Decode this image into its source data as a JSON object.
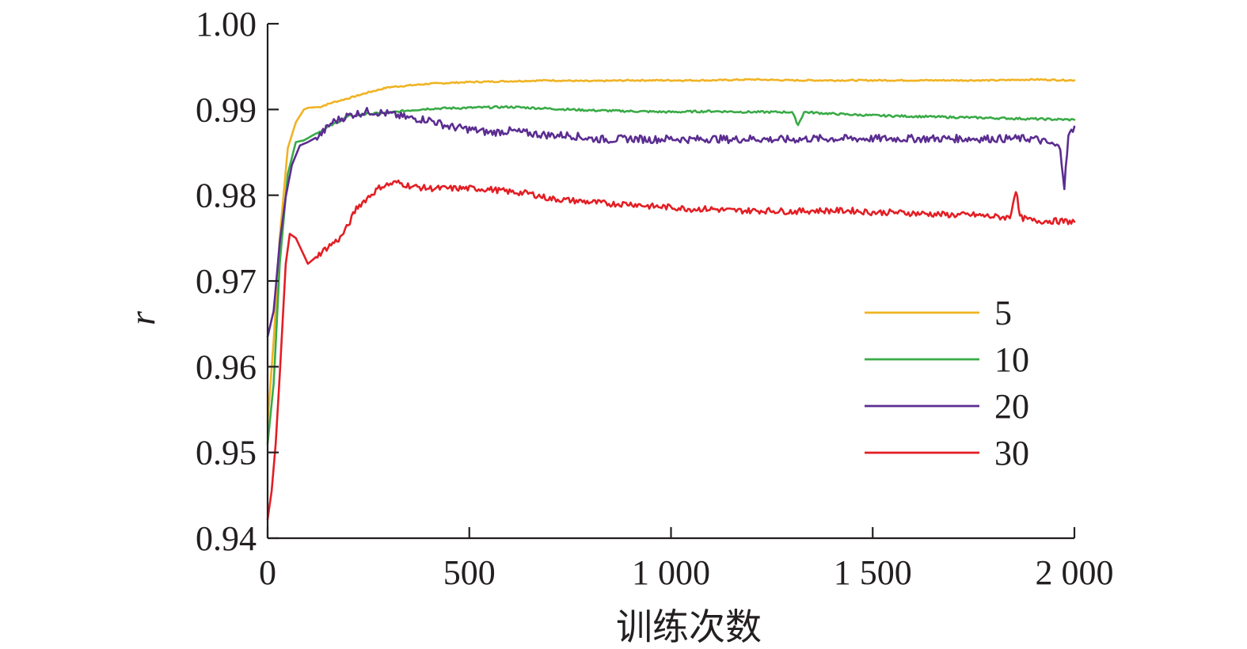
{
  "chart_data": {
    "type": "line",
    "xlabel": "训练次数",
    "ylabel": "r",
    "xlim": [
      0,
      2000
    ],
    "ylim": [
      0.94,
      1.0
    ],
    "x_ticks": [
      0,
      500,
      1000,
      1500,
      2000
    ],
    "x_tick_labels": [
      "0",
      "500",
      "1 000",
      "1 500",
      "2 000"
    ],
    "y_ticks": [
      0.94,
      0.95,
      0.96,
      0.97,
      0.98,
      0.99,
      1.0
    ],
    "y_tick_labels": [
      "0.94",
      "0.95",
      "0.96",
      "0.97",
      "0.98",
      "0.99",
      "1.00"
    ],
    "legend_position": "right-middle",
    "grid": false,
    "series": [
      {
        "name": "5",
        "color": "#f0b323",
        "points": [
          [
            0,
            0.9535
          ],
          [
            15,
            0.963
          ],
          [
            30,
            0.975
          ],
          [
            50,
            0.9855
          ],
          [
            70,
            0.9885
          ],
          [
            90,
            0.99
          ],
          [
            100,
            0.9902
          ],
          [
            130,
            0.9903
          ],
          [
            160,
            0.9908
          ],
          [
            200,
            0.9913
          ],
          [
            250,
            0.992
          ],
          [
            300,
            0.9926
          ],
          [
            350,
            0.9928
          ],
          [
            400,
            0.993
          ],
          [
            500,
            0.9932
          ],
          [
            600,
            0.9933
          ],
          [
            700,
            0.9934
          ],
          [
            800,
            0.9933
          ],
          [
            900,
            0.9934
          ],
          [
            1000,
            0.9934
          ],
          [
            1100,
            0.9934
          ],
          [
            1200,
            0.9935
          ],
          [
            1300,
            0.9934
          ],
          [
            1400,
            0.9934
          ],
          [
            1500,
            0.9934
          ],
          [
            1600,
            0.9934
          ],
          [
            1700,
            0.9934
          ],
          [
            1800,
            0.9934
          ],
          [
            1900,
            0.9935
          ],
          [
            2000,
            0.9934
          ]
        ]
      },
      {
        "name": "10",
        "color": "#3aaa47",
        "points": [
          [
            0,
            0.951
          ],
          [
            15,
            0.958
          ],
          [
            30,
            0.972
          ],
          [
            50,
            0.9825
          ],
          [
            70,
            0.9862
          ],
          [
            90,
            0.9864
          ],
          [
            120,
            0.9872
          ],
          [
            160,
            0.9882
          ],
          [
            200,
            0.9892
          ],
          [
            250,
            0.9895
          ],
          [
            300,
            0.9896
          ],
          [
            350,
            0.9899
          ],
          [
            400,
            0.9901
          ],
          [
            500,
            0.9902
          ],
          [
            600,
            0.9903
          ],
          [
            700,
            0.9901
          ],
          [
            800,
            0.9899
          ],
          [
            900,
            0.9898
          ],
          [
            1000,
            0.9897
          ],
          [
            1100,
            0.9898
          ],
          [
            1200,
            0.9897
          ],
          [
            1300,
            0.9897
          ],
          [
            1315,
            0.9882
          ],
          [
            1330,
            0.9897
          ],
          [
            1400,
            0.9895
          ],
          [
            1500,
            0.9893
          ],
          [
            1600,
            0.9892
          ],
          [
            1700,
            0.9891
          ],
          [
            1800,
            0.989
          ],
          [
            1900,
            0.9889
          ],
          [
            2000,
            0.9888
          ]
        ]
      },
      {
        "name": "20",
        "color": "#5b2d91",
        "points": [
          [
            0,
            0.9635
          ],
          [
            15,
            0.9665
          ],
          [
            30,
            0.9745
          ],
          [
            45,
            0.9798
          ],
          [
            60,
            0.9835
          ],
          [
            80,
            0.9858
          ],
          [
            100,
            0.9862
          ],
          [
            130,
            0.987
          ],
          [
            160,
            0.9885
          ],
          [
            200,
            0.9893
          ],
          [
            250,
            0.9898
          ],
          [
            300,
            0.9895
          ],
          [
            350,
            0.989
          ],
          [
            400,
            0.9888
          ],
          [
            450,
            0.988
          ],
          [
            500,
            0.9877
          ],
          [
            550,
            0.9873
          ],
          [
            600,
            0.9875
          ],
          [
            650,
            0.9872
          ],
          [
            700,
            0.987
          ],
          [
            750,
            0.987
          ],
          [
            800,
            0.9866
          ],
          [
            850,
            0.9865
          ],
          [
            900,
            0.9866
          ],
          [
            950,
            0.9865
          ],
          [
            1000,
            0.9866
          ],
          [
            1050,
            0.9865
          ],
          [
            1100,
            0.9866
          ],
          [
            1150,
            0.9865
          ],
          [
            1200,
            0.9866
          ],
          [
            1250,
            0.9865
          ],
          [
            1300,
            0.9865
          ],
          [
            1350,
            0.9866
          ],
          [
            1400,
            0.9866
          ],
          [
            1450,
            0.9866
          ],
          [
            1500,
            0.9866
          ],
          [
            1550,
            0.9866
          ],
          [
            1600,
            0.9866
          ],
          [
            1650,
            0.9866
          ],
          [
            1700,
            0.9866
          ],
          [
            1750,
            0.9866
          ],
          [
            1800,
            0.9866
          ],
          [
            1850,
            0.9866
          ],
          [
            1900,
            0.9866
          ],
          [
            1940,
            0.986
          ],
          [
            1965,
            0.9855
          ],
          [
            1975,
            0.981
          ],
          [
            1985,
            0.9868
          ],
          [
            2000,
            0.988
          ]
        ]
      },
      {
        "name": "30",
        "color": "#e31e24",
        "points": [
          [
            0,
            0.9422
          ],
          [
            10,
            0.9455
          ],
          [
            20,
            0.951
          ],
          [
            30,
            0.959
          ],
          [
            45,
            0.972
          ],
          [
            55,
            0.9755
          ],
          [
            70,
            0.975
          ],
          [
            85,
            0.9735
          ],
          [
            100,
            0.972
          ],
          [
            120,
            0.9728
          ],
          [
            150,
            0.974
          ],
          [
            180,
            0.975
          ],
          [
            200,
            0.9765
          ],
          [
            220,
            0.9785
          ],
          [
            250,
            0.9798
          ],
          [
            280,
            0.981
          ],
          [
            320,
            0.9815
          ],
          [
            360,
            0.981
          ],
          [
            400,
            0.9808
          ],
          [
            450,
            0.9808
          ],
          [
            500,
            0.9808
          ],
          [
            550,
            0.9807
          ],
          [
            600,
            0.9804
          ],
          [
            650,
            0.9802
          ],
          [
            700,
            0.9796
          ],
          [
            750,
            0.9794
          ],
          [
            800,
            0.9792
          ],
          [
            850,
            0.979
          ],
          [
            900,
            0.979
          ],
          [
            950,
            0.9787
          ],
          [
            1000,
            0.9786
          ],
          [
            1050,
            0.9784
          ],
          [
            1100,
            0.9784
          ],
          [
            1150,
            0.9782
          ],
          [
            1200,
            0.9782
          ],
          [
            1250,
            0.9782
          ],
          [
            1300,
            0.9781
          ],
          [
            1350,
            0.9782
          ],
          [
            1400,
            0.9782
          ],
          [
            1450,
            0.9782
          ],
          [
            1500,
            0.978
          ],
          [
            1550,
            0.978
          ],
          [
            1600,
            0.9779
          ],
          [
            1650,
            0.9778
          ],
          [
            1700,
            0.9777
          ],
          [
            1750,
            0.9777
          ],
          [
            1800,
            0.9775
          ],
          [
            1840,
            0.9774
          ],
          [
            1855,
            0.9807
          ],
          [
            1865,
            0.9774
          ],
          [
            1900,
            0.977
          ],
          [
            1950,
            0.977
          ],
          [
            2000,
            0.9769
          ]
        ]
      }
    ]
  }
}
